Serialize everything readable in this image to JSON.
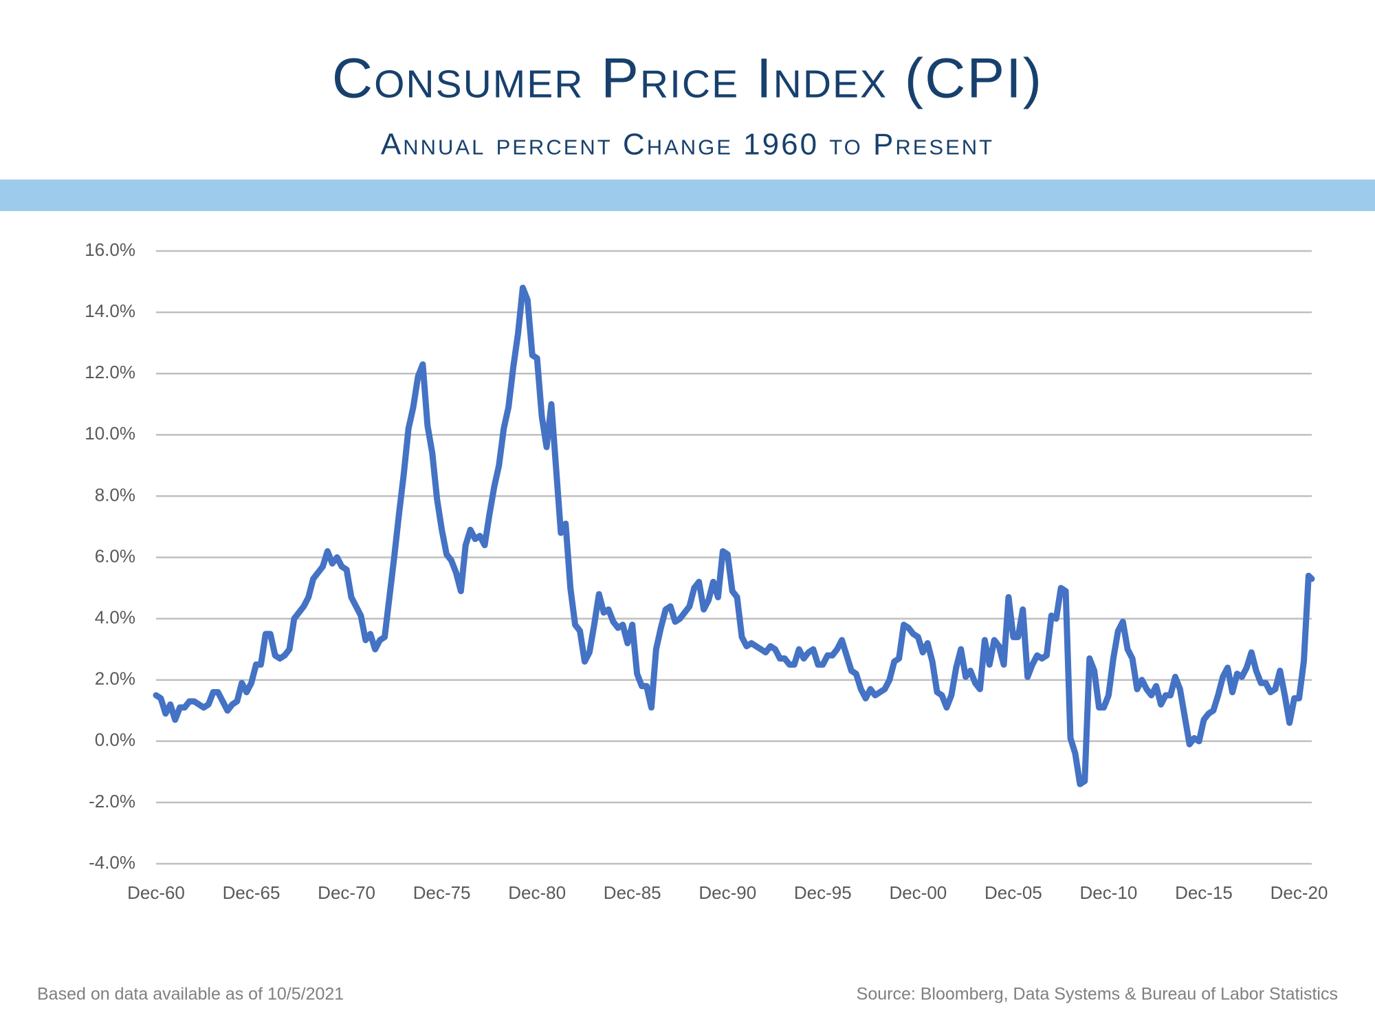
{
  "chart_data": {
    "type": "line",
    "title": "Consumer Price Index (CPI)",
    "subtitle": "Annual percent Change 1960 to Present",
    "note_left": "Based on data available as of 10/5/2021",
    "note_right": "Source:  Bloomberg, Data Systems & Bureau of Labor Statistics",
    "xlim": [
      "Dec-60",
      "Aug-21"
    ],
    "xticks": [
      "Dec-60",
      "Dec-65",
      "Dec-70",
      "Dec-75",
      "Dec-80",
      "Dec-85",
      "Dec-90",
      "Dec-95",
      "Dec-00",
      "Dec-05",
      "Dec-10",
      "Dec-15",
      "Dec-20"
    ],
    "ylim": [
      -4,
      16
    ],
    "yticks": [
      {
        "value": -4,
        "label": "-4.0%"
      },
      {
        "value": -2,
        "label": "-2.0%"
      },
      {
        "value": 0,
        "label": "0.0%"
      },
      {
        "value": 2,
        "label": "2.0%"
      },
      {
        "value": 4,
        "label": "4.0%"
      },
      {
        "value": 6,
        "label": "6.0%"
      },
      {
        "value": 8,
        "label": "8.0%"
      },
      {
        "value": 10,
        "label": "10.0%"
      },
      {
        "value": 12,
        "label": "12.0%"
      },
      {
        "value": 14,
        "label": "14.0%"
      },
      {
        "value": 16,
        "label": "16.0%"
      }
    ],
    "grid": true,
    "x": [
      "Dec-60",
      "Mar-61",
      "Jun-61",
      "Sep-61",
      "Dec-61",
      "Mar-62",
      "Jun-62",
      "Sep-62",
      "Dec-62",
      "Mar-63",
      "Jun-63",
      "Sep-63",
      "Dec-63",
      "Mar-64",
      "Jun-64",
      "Sep-64",
      "Dec-64",
      "Mar-65",
      "Jun-65",
      "Sep-65",
      "Dec-65",
      "Mar-66",
      "Jun-66",
      "Sep-66",
      "Dec-66",
      "Mar-67",
      "Jun-67",
      "Sep-67",
      "Dec-67",
      "Mar-68",
      "Jun-68",
      "Sep-68",
      "Dec-68",
      "Mar-69",
      "Jun-69",
      "Sep-69",
      "Dec-69",
      "Mar-70",
      "Jun-70",
      "Sep-70",
      "Dec-70",
      "Mar-71",
      "Jun-71",
      "Sep-71",
      "Dec-71",
      "Mar-72",
      "Jun-72",
      "Sep-72",
      "Dec-72",
      "Mar-73",
      "Jun-73",
      "Sep-73",
      "Dec-73",
      "Mar-74",
      "Jun-74",
      "Sep-74",
      "Dec-74",
      "Mar-75",
      "Jun-75",
      "Sep-75",
      "Dec-75",
      "Mar-76",
      "Jun-76",
      "Sep-76",
      "Dec-76",
      "Mar-77",
      "Jun-77",
      "Sep-77",
      "Dec-77",
      "Mar-78",
      "Jun-78",
      "Sep-78",
      "Dec-78",
      "Mar-79",
      "Jun-79",
      "Sep-79",
      "Dec-79",
      "Mar-80",
      "Jun-80",
      "Sep-80",
      "Dec-80",
      "Mar-81",
      "Jun-81",
      "Sep-81",
      "Dec-81",
      "Mar-82",
      "Jun-82",
      "Sep-82",
      "Dec-82",
      "Mar-83",
      "Jun-83",
      "Sep-83",
      "Dec-83",
      "Mar-84",
      "Jun-84",
      "Sep-84",
      "Dec-84",
      "Mar-85",
      "Jun-85",
      "Sep-85",
      "Dec-85",
      "Mar-86",
      "Jun-86",
      "Sep-86",
      "Dec-86",
      "Mar-87",
      "Jun-87",
      "Sep-87",
      "Dec-87",
      "Mar-88",
      "Jun-88",
      "Sep-88",
      "Dec-88",
      "Mar-89",
      "Jun-89",
      "Sep-89",
      "Dec-89",
      "Mar-90",
      "Jun-90",
      "Sep-90",
      "Dec-90",
      "Mar-91",
      "Jun-91",
      "Sep-91",
      "Dec-91",
      "Mar-92",
      "Jun-92",
      "Sep-92",
      "Dec-92",
      "Mar-93",
      "Jun-93",
      "Sep-93",
      "Dec-93",
      "Mar-94",
      "Jun-94",
      "Sep-94",
      "Dec-94",
      "Mar-95",
      "Jun-95",
      "Sep-95",
      "Dec-95",
      "Mar-96",
      "Jun-96",
      "Sep-96",
      "Dec-96",
      "Mar-97",
      "Jun-97",
      "Sep-97",
      "Dec-97",
      "Mar-98",
      "Jun-98",
      "Sep-98",
      "Dec-98",
      "Mar-99",
      "Jun-99",
      "Sep-99",
      "Dec-99",
      "Mar-00",
      "Jun-00",
      "Sep-00",
      "Dec-00",
      "Mar-01",
      "Jun-01",
      "Sep-01",
      "Dec-01",
      "Mar-02",
      "Jun-02",
      "Sep-02",
      "Dec-02",
      "Mar-03",
      "Jun-03",
      "Sep-03",
      "Dec-03",
      "Mar-04",
      "Jun-04",
      "Sep-04",
      "Dec-04",
      "Mar-05",
      "Jun-05",
      "Sep-05",
      "Dec-05",
      "Mar-06",
      "Jun-06",
      "Sep-06",
      "Dec-06",
      "Mar-07",
      "Jun-07",
      "Sep-07",
      "Dec-07",
      "Mar-08",
      "Jun-08",
      "Sep-08",
      "Dec-08",
      "Mar-09",
      "Jun-09",
      "Sep-09",
      "Dec-09",
      "Mar-10",
      "Jun-10",
      "Sep-10",
      "Dec-10",
      "Mar-11",
      "Jun-11",
      "Sep-11",
      "Dec-11",
      "Mar-12",
      "Jun-12",
      "Sep-12",
      "Dec-12",
      "Mar-13",
      "Jun-13",
      "Sep-13",
      "Dec-13",
      "Mar-14",
      "Jun-14",
      "Sep-14",
      "Dec-14",
      "Mar-15",
      "Jun-15",
      "Sep-15",
      "Dec-15",
      "Mar-16",
      "Jun-16",
      "Sep-16",
      "Dec-16",
      "Mar-17",
      "Jun-17",
      "Sep-17",
      "Dec-17",
      "Mar-18",
      "Jun-18",
      "Sep-18",
      "Dec-18",
      "Mar-19",
      "Jun-19",
      "Sep-19",
      "Dec-19",
      "Mar-20",
      "Jun-20",
      "Sep-20",
      "Dec-20",
      "Mar-21",
      "Jun-21",
      "Aug-21"
    ],
    "series": [
      {
        "name": "CPI",
        "color": "#4472c4",
        "values": [
          1.5,
          1.4,
          0.9,
          1.2,
          0.7,
          1.1,
          1.1,
          1.3,
          1.3,
          1.2,
          1.1,
          1.2,
          1.6,
          1.6,
          1.3,
          1.0,
          1.2,
          1.3,
          1.9,
          1.6,
          1.9,
          2.5,
          2.5,
          3.5,
          3.5,
          2.8,
          2.7,
          2.8,
          3.0,
          4.0,
          4.2,
          4.4,
          4.7,
          5.3,
          5.5,
          5.7,
          6.2,
          5.8,
          6.0,
          5.7,
          5.6,
          4.7,
          4.4,
          4.1,
          3.3,
          3.5,
          3.0,
          3.3,
          3.4,
          4.7,
          6.0,
          7.4,
          8.7,
          10.2,
          10.9,
          11.9,
          12.3,
          10.3,
          9.4,
          7.9,
          6.9,
          6.1,
          5.9,
          5.5,
          4.9,
          6.4,
          6.9,
          6.6,
          6.7,
          6.4,
          7.4,
          8.3,
          9.0,
          10.2,
          10.9,
          12.2,
          13.3,
          14.8,
          14.4,
          12.6,
          12.5,
          10.6,
          9.6,
          11.0,
          8.9,
          6.8,
          7.1,
          5.0,
          3.8,
          3.6,
          2.6,
          2.9,
          3.8,
          4.8,
          4.2,
          4.3,
          3.9,
          3.7,
          3.8,
          3.2,
          3.8,
          2.2,
          1.8,
          1.8,
          1.1,
          3.0,
          3.7,
          4.3,
          4.4,
          3.9,
          4.0,
          4.2,
          4.4,
          5.0,
          5.2,
          4.3,
          4.6,
          5.2,
          4.7,
          6.2,
          6.1,
          4.9,
          4.7,
          3.4,
          3.1,
          3.2,
          3.1,
          3.0,
          2.9,
          3.1,
          3.0,
          2.7,
          2.7,
          2.5,
          2.5,
          3.0,
          2.7,
          2.9,
          3.0,
          2.5,
          2.5,
          2.8,
          2.8,
          3.0,
          3.3,
          2.8,
          2.3,
          2.2,
          1.7,
          1.4,
          1.7,
          1.5,
          1.6,
          1.7,
          2.0,
          2.6,
          2.7,
          3.8,
          3.7,
          3.5,
          3.4,
          2.9,
          3.2,
          2.6,
          1.6,
          1.5,
          1.1,
          1.5,
          2.4,
          3.0,
          2.1,
          2.3,
          1.9,
          1.7,
          3.3,
          2.5,
          3.3,
          3.1,
          2.5,
          4.7,
          3.4,
          3.4,
          4.3,
          2.1,
          2.5,
          2.8,
          2.7,
          2.8,
          4.1,
          4.0,
          5.0,
          4.9,
          0.1,
          -0.4,
          -1.4,
          -1.3,
          2.7,
          2.3,
          1.1,
          1.1,
          1.5,
          2.7,
          3.6,
          3.9,
          3.0,
          2.7,
          1.7,
          2.0,
          1.7,
          1.5,
          1.8,
          1.2,
          1.5,
          1.5,
          2.1,
          1.7,
          0.8,
          -0.1,
          0.1,
          0.0,
          0.7,
          0.9,
          1.0,
          1.5,
          2.1,
          2.4,
          1.6,
          2.2,
          2.1,
          2.4,
          2.9,
          2.3,
          1.9,
          1.9,
          1.6,
          1.7,
          2.3,
          1.5,
          0.6,
          1.4,
          1.4,
          2.6,
          5.4,
          5.3
        ]
      }
    ]
  }
}
